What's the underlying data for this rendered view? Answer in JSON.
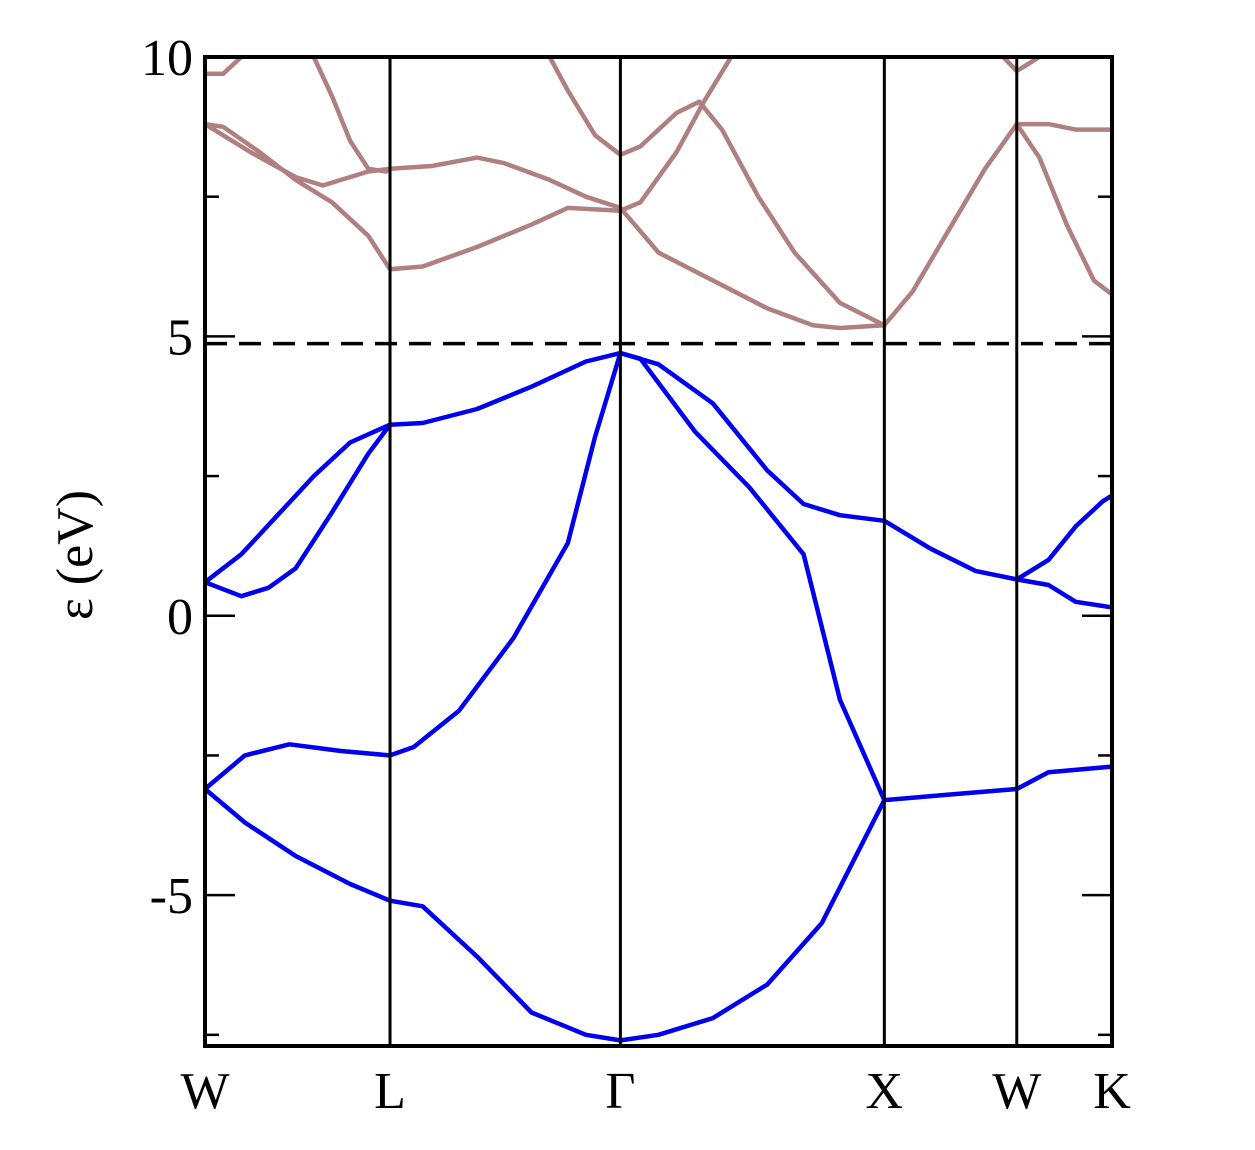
{
  "chart_data": {
    "type": "line",
    "ylabel": "ε (eV)",
    "ylim": [
      -7.7,
      10
    ],
    "yticks": [
      {
        "value": 10,
        "label": "10"
      },
      {
        "value": 5,
        "label": "5"
      },
      {
        "value": 0,
        "label": "0"
      },
      {
        "value": -5,
        "label": "-5"
      }
    ],
    "yminor": [
      7.5,
      2.5,
      -2.5,
      -7.5
    ],
    "xlim": [
      0,
      1
    ],
    "kpoints": [
      {
        "label": "W",
        "x": 0.0
      },
      {
        "label": "L",
        "x": 0.204
      },
      {
        "label": "Γ",
        "x": 0.458
      },
      {
        "label": "X",
        "x": 0.749
      },
      {
        "label": "W",
        "x": 0.895
      },
      {
        "label": "K",
        "x": 1.0
      }
    ],
    "fermi_level": 4.87,
    "colors": {
      "valence": "#0000ee",
      "conduction": "#b08080",
      "axes": "#000000"
    },
    "series": [
      {
        "group": "valence",
        "points": [
          [
            0,
            -3.1
          ],
          [
            0.044,
            -2.5
          ],
          [
            0.093,
            -2.3
          ],
          [
            0.15,
            -2.42
          ],
          [
            0.204,
            -2.5
          ],
          [
            0.23,
            -2.35
          ],
          [
            0.28,
            -1.7
          ],
          [
            0.34,
            -0.4
          ],
          [
            0.4,
            1.3
          ],
          [
            0.43,
            3.2
          ],
          [
            0.458,
            4.7
          ],
          [
            0.48,
            4.6
          ],
          [
            0.54,
            3.3
          ],
          [
            0.6,
            2.3
          ],
          [
            0.66,
            1.1
          ],
          [
            0.7,
            -1.5
          ],
          [
            0.749,
            -3.3
          ],
          [
            0.82,
            -3.2
          ],
          [
            0.895,
            -3.1
          ],
          [
            0.93,
            -2.8
          ],
          [
            1.0,
            -2.7
          ]
        ]
      },
      {
        "group": "valence",
        "points": [
          [
            0,
            -3.1
          ],
          [
            0.044,
            -3.7
          ],
          [
            0.1,
            -4.3
          ],
          [
            0.16,
            -4.8
          ],
          [
            0.204,
            -5.1
          ],
          [
            0.24,
            -5.2
          ],
          [
            0.3,
            -6.1
          ],
          [
            0.36,
            -7.1
          ],
          [
            0.42,
            -7.5
          ],
          [
            0.458,
            -7.6
          ],
          [
            0.5,
            -7.5
          ],
          [
            0.56,
            -7.2
          ],
          [
            0.62,
            -6.6
          ],
          [
            0.68,
            -5.5
          ],
          [
            0.749,
            -3.3
          ]
        ]
      },
      {
        "group": "valence",
        "points": [
          [
            0,
            0.6
          ],
          [
            0.04,
            0.35
          ],
          [
            0.07,
            0.5
          ],
          [
            0.1,
            0.85
          ],
          [
            0.14,
            1.85
          ],
          [
            0.18,
            2.9
          ],
          [
            0.204,
            3.42
          ],
          [
            0.24,
            3.45
          ],
          [
            0.3,
            3.7
          ],
          [
            0.36,
            4.1
          ],
          [
            0.42,
            4.55
          ],
          [
            0.458,
            4.7
          ],
          [
            0.5,
            4.5
          ],
          [
            0.56,
            3.8
          ],
          [
            0.62,
            2.6
          ],
          [
            0.66,
            2.0
          ],
          [
            0.7,
            1.8
          ],
          [
            0.749,
            1.7
          ],
          [
            0.8,
            1.2
          ],
          [
            0.85,
            0.8
          ],
          [
            0.895,
            0.65
          ],
          [
            0.93,
            0.55
          ],
          [
            0.96,
            0.25
          ],
          [
            1.0,
            0.15
          ]
        ]
      },
      {
        "group": "valence",
        "points": [
          [
            0,
            0.6
          ],
          [
            0.04,
            1.1
          ],
          [
            0.08,
            1.8
          ],
          [
            0.12,
            2.5
          ],
          [
            0.16,
            3.1
          ],
          [
            0.204,
            3.42
          ]
        ]
      },
      {
        "group": "valence",
        "points": [
          [
            0.895,
            0.65
          ],
          [
            0.93,
            1.0
          ],
          [
            0.96,
            1.6
          ],
          [
            0.99,
            2.05
          ],
          [
            1.0,
            2.15
          ]
        ]
      },
      {
        "group": "conduction",
        "points": [
          [
            0,
            8.8
          ],
          [
            0.05,
            8.3
          ],
          [
            0.1,
            7.85
          ],
          [
            0.13,
            7.7
          ],
          [
            0.15,
            7.8
          ],
          [
            0.18,
            7.95
          ],
          [
            0.204,
            8.0
          ],
          [
            0.25,
            8.05
          ],
          [
            0.3,
            8.2
          ],
          [
            0.33,
            8.1
          ],
          [
            0.38,
            7.8
          ],
          [
            0.42,
            7.5
          ],
          [
            0.458,
            7.3
          ],
          [
            0.5,
            6.5
          ],
          [
            0.56,
            6.0
          ],
          [
            0.62,
            5.5
          ],
          [
            0.67,
            5.2
          ],
          [
            0.7,
            5.15
          ],
          [
            0.749,
            5.2
          ],
          [
            0.78,
            5.8
          ],
          [
            0.82,
            6.9
          ],
          [
            0.86,
            8.0
          ],
          [
            0.895,
            8.8
          ],
          [
            0.93,
            8.8
          ],
          [
            0.96,
            8.7
          ],
          [
            1.0,
            8.7
          ]
        ]
      },
      {
        "group": "conduction",
        "points": [
          [
            0,
            8.8
          ],
          [
            0.02,
            8.75
          ],
          [
            0.06,
            8.3
          ],
          [
            0.1,
            7.8
          ],
          [
            0.14,
            7.4
          ],
          [
            0.18,
            6.8
          ],
          [
            0.204,
            6.2
          ],
          [
            0.24,
            6.25
          ],
          [
            0.3,
            6.6
          ],
          [
            0.36,
            7.0
          ],
          [
            0.4,
            7.3
          ],
          [
            0.458,
            7.25
          ],
          [
            0.48,
            7.4
          ],
          [
            0.52,
            8.3
          ],
          [
            0.55,
            9.2
          ],
          [
            0.58,
            10.0
          ]
        ]
      },
      {
        "group": "conduction",
        "points": [
          [
            0.12,
            10.0
          ],
          [
            0.14,
            9.3
          ],
          [
            0.16,
            8.5
          ],
          [
            0.18,
            8.0
          ],
          [
            0.2,
            7.95
          ]
        ]
      },
      {
        "group": "conduction",
        "points": [
          [
            0.38,
            10.0
          ],
          [
            0.4,
            9.4
          ],
          [
            0.43,
            8.6
          ],
          [
            0.458,
            8.25
          ],
          [
            0.48,
            8.4
          ],
          [
            0.52,
            9.0
          ],
          [
            0.545,
            9.2
          ],
          [
            0.57,
            8.7
          ],
          [
            0.61,
            7.5
          ],
          [
            0.65,
            6.5
          ],
          [
            0.7,
            5.6
          ],
          [
            0.749,
            5.2
          ]
        ]
      },
      {
        "group": "conduction",
        "points": [
          [
            0,
            9.7
          ],
          [
            0.02,
            9.7
          ],
          [
            0.04,
            10.0
          ]
        ]
      },
      {
        "group": "conduction",
        "points": [
          [
            0.88,
            10.0
          ],
          [
            0.895,
            9.75
          ],
          [
            0.91,
            9.9
          ],
          [
            0.92,
            10.0
          ]
        ]
      },
      {
        "group": "conduction",
        "points": [
          [
            0.895,
            8.8
          ],
          [
            0.92,
            8.2
          ],
          [
            0.95,
            7.0
          ],
          [
            0.98,
            6.0
          ],
          [
            1.0,
            5.75
          ]
        ]
      }
    ]
  }
}
